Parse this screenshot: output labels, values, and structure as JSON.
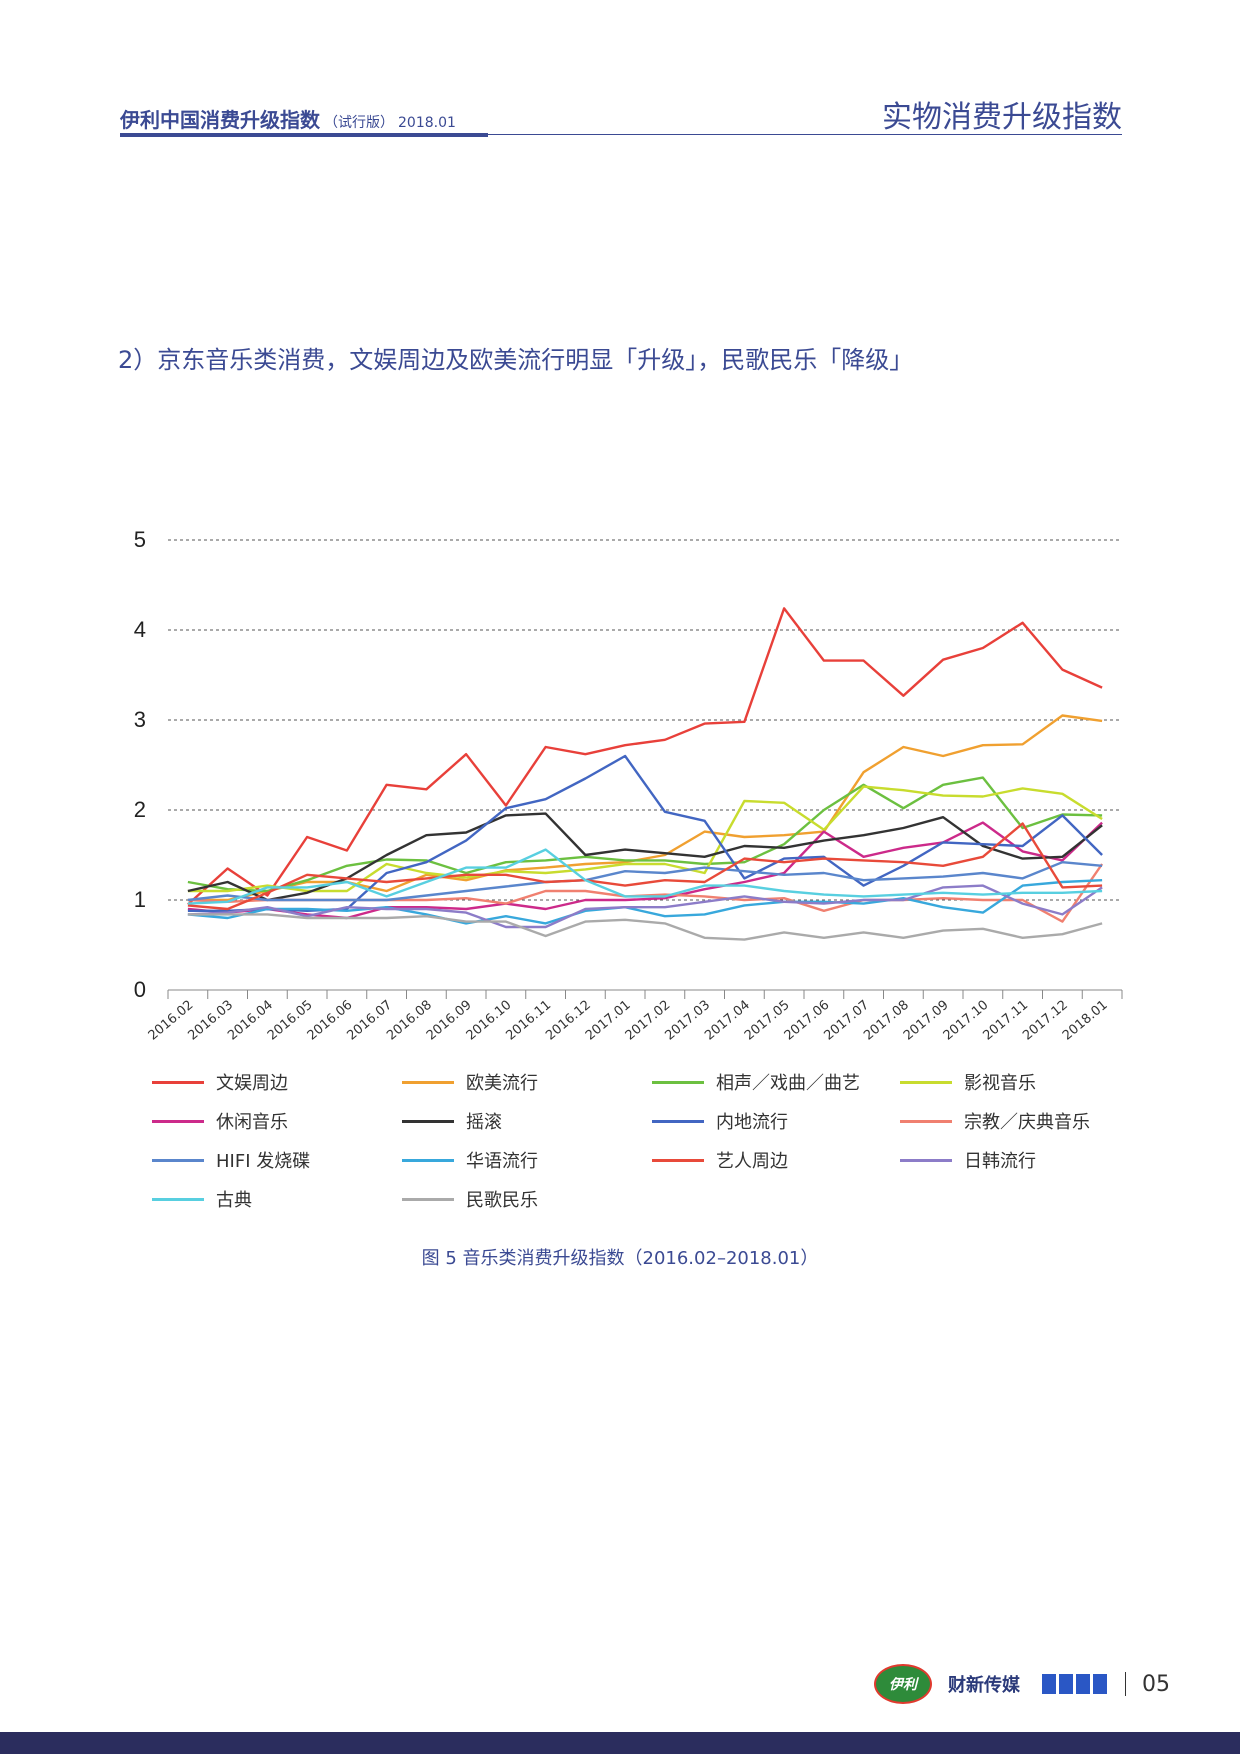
{
  "header": {
    "brand": "伊利中国消费升级指数",
    "edition": "（试行版）",
    "date": "2018.01",
    "section": "实物消费升级指数"
  },
  "section_title": "2）京东音乐类消费，文娱周边及欧美流行明显「升级」，民歌民乐「降级」",
  "caption": "图 5 音乐类消费升级指数（2016.02–2018.01）",
  "footer": {
    "logo_yili": "伊利",
    "logo_caixin": "财新传媒",
    "page_number": "05"
  },
  "chart_data": {
    "type": "line",
    "ylim": [
      0,
      5
    ],
    "yticks": [
      "0",
      "1",
      "2",
      "3",
      "4",
      "5"
    ],
    "grid": "dashed horizontal",
    "legend_position": "bottom",
    "categories": [
      "2016.02",
      "2016.03",
      "2016.04",
      "2016.05",
      "2016.06",
      "2016.07",
      "2016.08",
      "2016.09",
      "2016.10",
      "2016.11",
      "2016.12",
      "2017.01",
      "2017.02",
      "2017.03",
      "2017.04",
      "2017.05",
      "2017.06",
      "2017.07",
      "2017.08",
      "2017.09",
      "2017.10",
      "2017.11",
      "2017.12",
      "2018.01"
    ],
    "series": [
      {
        "name": "文娱周边",
        "color": "#e8403a",
        "values": [
          0.95,
          1.35,
          1.05,
          1.7,
          1.55,
          2.28,
          2.23,
          2.62,
          2.05,
          2.7,
          2.62,
          2.72,
          2.78,
          2.96,
          2.98,
          4.24,
          3.66,
          3.66,
          3.27,
          3.67,
          3.8,
          4.08,
          3.56,
          3.36
        ]
      },
      {
        "name": "欧美流行",
        "color": "#f0a030",
        "values": [
          1.0,
          1.0,
          1.1,
          1.2,
          1.2,
          1.1,
          1.28,
          1.22,
          1.33,
          1.36,
          1.4,
          1.42,
          1.5,
          1.76,
          1.7,
          1.72,
          1.76,
          2.42,
          2.7,
          2.6,
          2.72,
          2.73,
          3.05,
          2.99
        ]
      },
      {
        "name": "相声／戏曲／曲艺",
        "color": "#6cc040",
        "values": [
          1.2,
          1.12,
          1.1,
          1.22,
          1.38,
          1.45,
          1.44,
          1.3,
          1.42,
          1.44,
          1.48,
          1.44,
          1.44,
          1.4,
          1.42,
          1.62,
          2.0,
          2.28,
          2.02,
          2.28,
          2.36,
          1.8,
          1.95,
          1.94
        ]
      },
      {
        "name": "影视音乐",
        "color": "#c8dc2e",
        "values": [
          1.1,
          1.1,
          1.16,
          1.1,
          1.1,
          1.4,
          1.3,
          1.25,
          1.32,
          1.3,
          1.34,
          1.4,
          1.4,
          1.3,
          2.1,
          2.08,
          1.78,
          2.26,
          2.22,
          2.16,
          2.15,
          2.24,
          2.18,
          1.9
        ]
      },
      {
        "name": "休闲音乐",
        "color": "#cc2a8a",
        "values": [
          0.9,
          0.86,
          0.9,
          0.84,
          0.8,
          0.92,
          0.92,
          0.9,
          0.96,
          0.9,
          1.0,
          1.0,
          1.02,
          1.12,
          1.2,
          1.3,
          1.76,
          1.48,
          1.58,
          1.64,
          1.86,
          1.54,
          1.44,
          1.86
        ]
      },
      {
        "name": "摇滚",
        "color": "#333333",
        "values": [
          1.1,
          1.2,
          1.0,
          1.08,
          1.24,
          1.5,
          1.72,
          1.75,
          1.94,
          1.96,
          1.5,
          1.56,
          1.52,
          1.48,
          1.6,
          1.58,
          1.66,
          1.72,
          1.8,
          1.92,
          1.6,
          1.46,
          1.48,
          1.83
        ]
      },
      {
        "name": "内地流行",
        "color": "#4266c2",
        "values": [
          0.88,
          0.88,
          0.9,
          0.88,
          0.9,
          1.3,
          1.42,
          1.66,
          2.02,
          2.12,
          2.35,
          2.6,
          1.98,
          1.88,
          1.24,
          1.46,
          1.48,
          1.16,
          1.38,
          1.64,
          1.62,
          1.6,
          1.94,
          1.5
        ]
      },
      {
        "name": "宗教／庆典音乐",
        "color": "#f08070",
        "values": [
          1.0,
          0.98,
          1.0,
          1.0,
          1.0,
          1.0,
          1.0,
          1.02,
          0.96,
          1.1,
          1.1,
          1.04,
          1.06,
          1.04,
          1.0,
          1.02,
          0.88,
          1.0,
          1.0,
          1.02,
          1.0,
          1.0,
          0.76,
          1.4
        ]
      },
      {
        "name": "HIFI 发烧碟",
        "color": "#5a86cc",
        "values": [
          1.0,
          1.05,
          1.0,
          1.0,
          1.0,
          1.0,
          1.05,
          1.1,
          1.15,
          1.2,
          1.22,
          1.32,
          1.3,
          1.36,
          1.32,
          1.28,
          1.3,
          1.22,
          1.24,
          1.26,
          1.3,
          1.24,
          1.42,
          1.38
        ]
      },
      {
        "name": "华语流行",
        "color": "#38a8dc",
        "values": [
          0.84,
          0.8,
          0.9,
          0.9,
          0.88,
          0.92,
          0.84,
          0.74,
          0.82,
          0.74,
          0.88,
          0.92,
          0.82,
          0.84,
          0.94,
          0.98,
          0.98,
          0.96,
          1.02,
          0.92,
          0.86,
          1.16,
          1.2,
          1.22
        ]
      },
      {
        "name": "艺人周边",
        "color": "#e84a3a",
        "values": [
          0.94,
          0.9,
          1.08,
          1.28,
          1.24,
          1.2,
          1.24,
          1.28,
          1.28,
          1.2,
          1.22,
          1.16,
          1.22,
          1.2,
          1.46,
          1.42,
          1.46,
          1.44,
          1.42,
          1.38,
          1.48,
          1.85,
          1.14,
          1.16
        ]
      },
      {
        "name": "日韩流行",
        "color": "#8c7cc8",
        "values": [
          0.84,
          0.86,
          0.92,
          0.82,
          0.92,
          0.9,
          0.9,
          0.86,
          0.7,
          0.7,
          0.9,
          0.92,
          0.92,
          0.98,
          1.04,
          0.98,
          0.96,
          1.0,
          1.0,
          1.14,
          1.16,
          0.96,
          0.84,
          1.14
        ]
      },
      {
        "name": "古典",
        "color": "#58cfe0",
        "values": [
          0.96,
          0.98,
          1.14,
          1.14,
          1.2,
          1.04,
          1.2,
          1.36,
          1.36,
          1.56,
          1.22,
          1.04,
          1.04,
          1.16,
          1.16,
          1.1,
          1.06,
          1.04,
          1.06,
          1.08,
          1.06,
          1.08,
          1.08,
          1.1
        ]
      },
      {
        "name": "民歌民乐",
        "color": "#aaaaaa",
        "values": [
          0.84,
          0.84,
          0.84,
          0.8,
          0.8,
          0.8,
          0.82,
          0.76,
          0.76,
          0.6,
          0.76,
          0.78,
          0.74,
          0.58,
          0.56,
          0.64,
          0.58,
          0.64,
          0.58,
          0.66,
          0.68,
          0.58,
          0.62,
          0.74
        ]
      }
    ]
  }
}
